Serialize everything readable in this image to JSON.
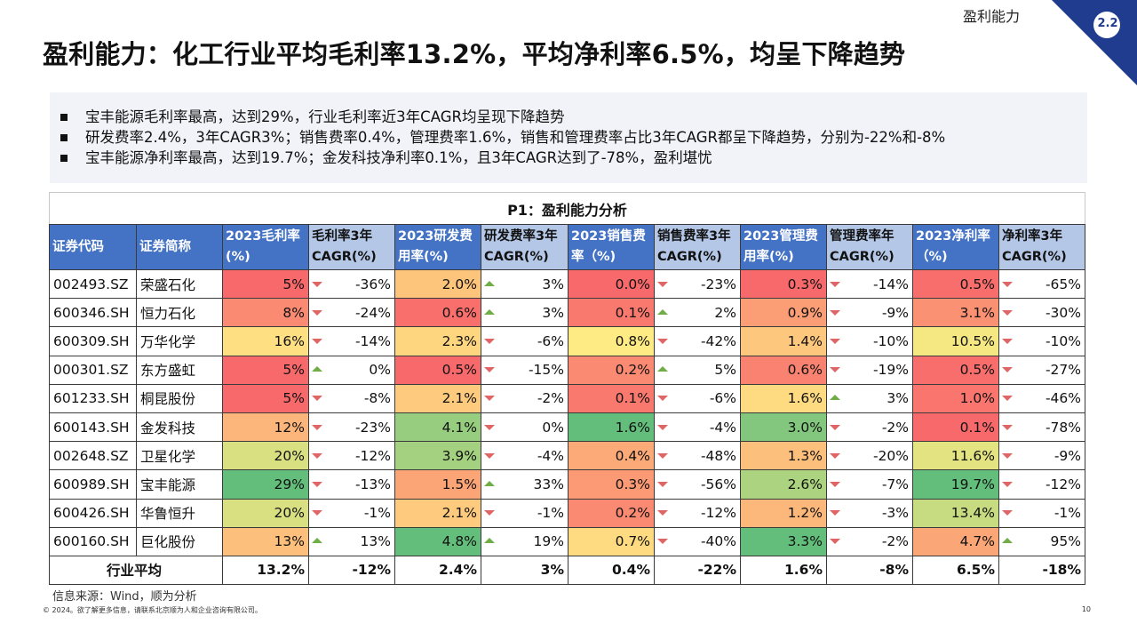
{
  "header": {
    "section": "盈利能力",
    "section_number": "2.2",
    "title": "盈利能力：化工行业平均毛利率13.2%，平均净利率6.5%，均呈下降趋势"
  },
  "summary": [
    "宝丰能源毛利率最高，达到29%，行业毛利率近3年CAGR均呈现下降趋势",
    "研发费率2.4%，3年CAGR3%；销售费率0.4%，管理费率1.6%，销售和管理费率占比3年CAGR都呈下降趋势，分别为-22%和-8%",
    "宝丰能源净利率最高，达到19.7%；金发科技净利率0.1%，且3年CAGR达到了-78%，盈利堪忧"
  ],
  "table": {
    "caption": "P1：盈利能力分析",
    "columns": [
      "证券代码",
      "证券简称",
      "2023毛利率(%)",
      "毛利率3年CAGR(%)",
      "2023研发费用率(%)",
      "研发费率3年CAGR(%)",
      "2023销售费率（%)",
      "销售费率3年CAGR(%)",
      "2023管理费用率(%)",
      "管理费率年CAGR(%)",
      "2023净利率（%)",
      "净利率3年CAGR(%)"
    ],
    "rows": [
      {
        "code": "002493.SZ",
        "name": "荣盛石化",
        "gm": "5%",
        "gm_dir": "down",
        "gm_cagr": "-36%",
        "rd": "2.0%",
        "rd_dir": "up",
        "rd_cagr": "3%",
        "sales": "0.0%",
        "sales_dir": "down",
        "sales_cagr": "-23%",
        "mgmt": "0.3%",
        "mgmt_dir": "down",
        "mgmt_cagr": "-14%",
        "np": "0.5%",
        "np_dir": "down",
        "np_cagr": "-65%"
      },
      {
        "code": "600346.SH",
        "name": "恒力石化",
        "gm": "8%",
        "gm_dir": "down",
        "gm_cagr": "-24%",
        "rd": "0.6%",
        "rd_dir": "up",
        "rd_cagr": "3%",
        "sales": "0.1%",
        "sales_dir": "up",
        "sales_cagr": "2%",
        "mgmt": "0.9%",
        "mgmt_dir": "down",
        "mgmt_cagr": "-9%",
        "np": "3.1%",
        "np_dir": "down",
        "np_cagr": "-30%"
      },
      {
        "code": "600309.SH",
        "name": "万华化学",
        "gm": "16%",
        "gm_dir": "down",
        "gm_cagr": "-14%",
        "rd": "2.3%",
        "rd_dir": "down",
        "rd_cagr": "-6%",
        "sales": "0.8%",
        "sales_dir": "down",
        "sales_cagr": "-42%",
        "mgmt": "1.4%",
        "mgmt_dir": "down",
        "mgmt_cagr": "-10%",
        "np": "10.5%",
        "np_dir": "down",
        "np_cagr": "-10%"
      },
      {
        "code": "000301.SZ",
        "name": "东方盛虹",
        "gm": "5%",
        "gm_dir": "up",
        "gm_cagr": "0%",
        "rd": "0.5%",
        "rd_dir": "down",
        "rd_cagr": "-15%",
        "sales": "0.2%",
        "sales_dir": "up",
        "sales_cagr": "5%",
        "mgmt": "0.6%",
        "mgmt_dir": "down",
        "mgmt_cagr": "-19%",
        "np": "0.5%",
        "np_dir": "down",
        "np_cagr": "-27%"
      },
      {
        "code": "601233.SH",
        "name": "桐昆股份",
        "gm": "5%",
        "gm_dir": "down",
        "gm_cagr": "-8%",
        "rd": "2.1%",
        "rd_dir": "down",
        "rd_cagr": "-2%",
        "sales": "0.1%",
        "sales_dir": "down",
        "sales_cagr": "-6%",
        "mgmt": "1.6%",
        "mgmt_dir": "up",
        "mgmt_cagr": "3%",
        "np": "1.0%",
        "np_dir": "down",
        "np_cagr": "-46%"
      },
      {
        "code": "600143.SH",
        "name": "金发科技",
        "gm": "12%",
        "gm_dir": "down",
        "gm_cagr": "-23%",
        "rd": "4.1%",
        "rd_dir": "down",
        "rd_cagr": "0%",
        "sales": "1.6%",
        "sales_dir": "down",
        "sales_cagr": "-4%",
        "mgmt": "3.0%",
        "mgmt_dir": "down",
        "mgmt_cagr": "-2%",
        "np": "0.1%",
        "np_dir": "down",
        "np_cagr": "-78%"
      },
      {
        "code": "002648.SZ",
        "name": "卫星化学",
        "gm": "20%",
        "gm_dir": "down",
        "gm_cagr": "-12%",
        "rd": "3.9%",
        "rd_dir": "down",
        "rd_cagr": "-4%",
        "sales": "0.4%",
        "sales_dir": "down",
        "sales_cagr": "-48%",
        "mgmt": "1.3%",
        "mgmt_dir": "down",
        "mgmt_cagr": "-20%",
        "np": "11.6%",
        "np_dir": "down",
        "np_cagr": "-9%"
      },
      {
        "code": "600989.SH",
        "name": "宝丰能源",
        "gm": "29%",
        "gm_dir": "down",
        "gm_cagr": "-13%",
        "rd": "1.5%",
        "rd_dir": "up",
        "rd_cagr": "33%",
        "sales": "0.3%",
        "sales_dir": "down",
        "sales_cagr": "-56%",
        "mgmt": "2.6%",
        "mgmt_dir": "down",
        "mgmt_cagr": "-7%",
        "np": "19.7%",
        "np_dir": "down",
        "np_cagr": "-12%"
      },
      {
        "code": "600426.SH",
        "name": "华鲁恒升",
        "gm": "20%",
        "gm_dir": "down",
        "gm_cagr": "-1%",
        "rd": "2.1%",
        "rd_dir": "down",
        "rd_cagr": "-1%",
        "sales": "0.2%",
        "sales_dir": "down",
        "sales_cagr": "-12%",
        "mgmt": "1.2%",
        "mgmt_dir": "down",
        "mgmt_cagr": "-3%",
        "np": "13.4%",
        "np_dir": "down",
        "np_cagr": "-1%"
      },
      {
        "code": "600160.SH",
        "name": "巨化股份",
        "gm": "13%",
        "gm_dir": "up",
        "gm_cagr": "13%",
        "rd": "4.8%",
        "rd_dir": "up",
        "rd_cagr": "19%",
        "sales": "0.7%",
        "sales_dir": "down",
        "sales_cagr": "-40%",
        "mgmt": "3.3%",
        "mgmt_dir": "down",
        "mgmt_cagr": "-2%",
        "np": "4.7%",
        "np_dir": "up",
        "np_cagr": "95%"
      }
    ],
    "average": {
      "label": "行业平均",
      "gm": "13.2%",
      "gm_cagr": "-12%",
      "rd": "2.4%",
      "rd_cagr": "3%",
      "sales": "0.4%",
      "sales_cagr": "-22%",
      "mgmt": "1.6%",
      "mgmt_cagr": "-8%",
      "np": "6.5%",
      "np_cagr": "-18%"
    }
  },
  "footer": {
    "source": "信息来源：Wind，顺为分析",
    "copyright": "© 2024。欲了解更多信息，请联系北京顺为人和企业咨询有限公司。",
    "page_number": "10"
  },
  "colors": {
    "header_blue": "#4472c4",
    "header_light_blue": "#b4c7e7",
    "corner_navy": "#1f3c8f",
    "heat_low": "#f8696b",
    "heat_mid": "#ffeb84",
    "heat_high": "#63be7b",
    "arrow_down": "#e06666",
    "arrow_up": "#70ad47"
  }
}
